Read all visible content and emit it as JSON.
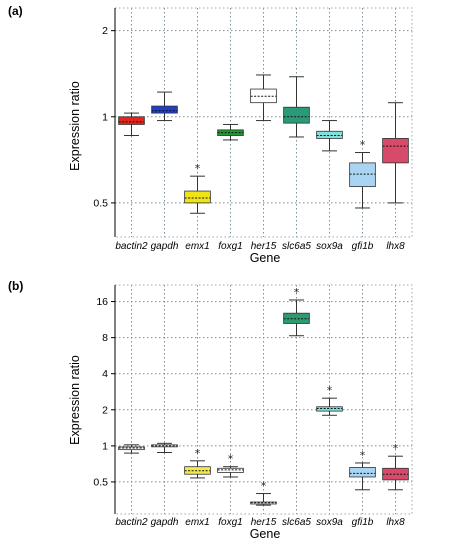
{
  "chart_data": [
    {
      "type": "box",
      "panel_label": "(a)",
      "xlabel": "Gene",
      "ylabel": "Expression ratio",
      "yscale": "log",
      "ylim": [
        0.38,
        2.4
      ],
      "yticks": [
        0.5,
        1,
        2
      ],
      "ytick_labels": [
        "0.5",
        "1",
        "2"
      ],
      "grid": "dotted",
      "categories": [
        "bactin2",
        "gapdh",
        "emx1",
        "foxg1",
        "her15",
        "slc6a5",
        "sox9a",
        "gfi1b",
        "lhx8"
      ],
      "boxes": [
        {
          "gene": "bactin2",
          "whisker_low": 0.86,
          "q1": 0.94,
          "median": 0.96,
          "q3": 1.0,
          "whisker_high": 1.03,
          "color": "#e8231b",
          "significant": false
        },
        {
          "gene": "gapdh",
          "whisker_low": 0.97,
          "q1": 1.03,
          "median": 1.05,
          "q3": 1.09,
          "whisker_high": 1.22,
          "color": "#1f3fc8",
          "significant": false
        },
        {
          "gene": "emx1",
          "whisker_low": 0.46,
          "q1": 0.5,
          "median": 0.52,
          "q3": 0.55,
          "whisker_high": 0.62,
          "color": "#f1e416",
          "significant": true
        },
        {
          "gene": "foxg1",
          "whisker_low": 0.83,
          "q1": 0.86,
          "median": 0.88,
          "q3": 0.9,
          "whisker_high": 0.94,
          "color": "#1e9b2e",
          "significant": false
        },
        {
          "gene": "her15",
          "whisker_low": 0.97,
          "q1": 1.12,
          "median": 1.18,
          "q3": 1.25,
          "whisker_high": 1.4,
          "color": "#ffffff",
          "significant": false
        },
        {
          "gene": "slc6a5",
          "whisker_low": 0.85,
          "q1": 0.95,
          "median": 1.0,
          "q3": 1.08,
          "whisker_high": 1.38,
          "color": "#2a9a78",
          "significant": false
        },
        {
          "gene": "sox9a",
          "whisker_low": 0.76,
          "q1": 0.84,
          "median": 0.86,
          "q3": 0.89,
          "whisker_high": 0.97,
          "color": "#7fe0dc",
          "significant": false
        },
        {
          "gene": "gfi1b",
          "whisker_low": 0.48,
          "q1": 0.57,
          "median": 0.63,
          "q3": 0.69,
          "whisker_high": 0.75,
          "color": "#a9d5f2",
          "significant": true
        },
        {
          "gene": "lhx8",
          "whisker_low": 0.5,
          "q1": 0.69,
          "median": 0.79,
          "q3": 0.84,
          "whisker_high": 1.12,
          "color": "#d84a6a",
          "significant": false
        }
      ]
    },
    {
      "type": "box",
      "panel_label": "(b)",
      "xlabel": "Gene",
      "ylabel": "Expression ratio",
      "yscale": "log",
      "ylim": [
        0.27,
        22
      ],
      "yticks": [
        0.5,
        1,
        2,
        4,
        8,
        16
      ],
      "ytick_labels": [
        "0.5",
        "1",
        "2",
        "4",
        "8",
        "16"
      ],
      "grid": "dotted",
      "categories": [
        "bactin2",
        "gapdh",
        "emx1",
        "foxg1",
        "her15",
        "slc6a5",
        "sox9a",
        "gfi1b",
        "lhx8"
      ],
      "boxes": [
        {
          "gene": "bactin2",
          "whisker_low": 0.87,
          "q1": 0.93,
          "median": 0.96,
          "q3": 0.98,
          "whisker_high": 1.02,
          "color": "#ffffff",
          "significant": false
        },
        {
          "gene": "gapdh",
          "whisker_low": 0.88,
          "q1": 0.99,
          "median": 1.0,
          "q3": 1.02,
          "whisker_high": 1.05,
          "color": "#ffffff",
          "significant": false
        },
        {
          "gene": "emx1",
          "whisker_low": 0.54,
          "q1": 0.58,
          "median": 0.62,
          "q3": 0.67,
          "whisker_high": 0.75,
          "color": "#f3e94a",
          "significant": true
        },
        {
          "gene": "foxg1",
          "whisker_low": 0.55,
          "q1": 0.6,
          "median": 0.63,
          "q3": 0.65,
          "whisker_high": 0.67,
          "color": "#ffffff",
          "significant": true
        },
        {
          "gene": "her15",
          "whisker_low": 0.32,
          "q1": 0.33,
          "median": 0.335,
          "q3": 0.34,
          "whisker_high": 0.4,
          "color": "#ffffff",
          "significant": true
        },
        {
          "gene": "slc6a5",
          "whisker_low": 8.3,
          "q1": 10.5,
          "median": 11.5,
          "q3": 12.8,
          "whisker_high": 16.5,
          "color": "#2e9a6e",
          "significant": true
        },
        {
          "gene": "sox9a",
          "whisker_low": 1.8,
          "q1": 1.95,
          "median": 2.05,
          "q3": 2.12,
          "whisker_high": 2.5,
          "color": "#7fe0dc",
          "significant": true
        },
        {
          "gene": "gfi1b",
          "whisker_low": 0.43,
          "q1": 0.55,
          "median": 0.59,
          "q3": 0.66,
          "whisker_high": 0.72,
          "color": "#a9d5f2",
          "significant": true
        },
        {
          "gene": "lhx8",
          "whisker_low": 0.43,
          "q1": 0.52,
          "median": 0.58,
          "q3": 0.65,
          "whisker_high": 0.82,
          "color": "#d84a6a",
          "significant": true
        }
      ]
    }
  ]
}
